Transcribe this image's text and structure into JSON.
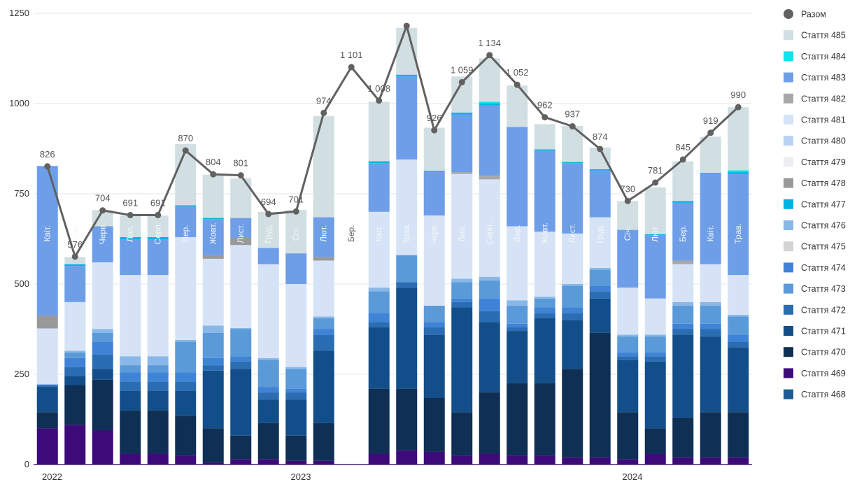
{
  "chart_data": {
    "type": "bar",
    "stacked": true,
    "ylim": [
      0,
      1250
    ],
    "yticks": [
      0,
      250,
      500,
      750,
      1000,
      1250
    ],
    "grid": true,
    "legend_position": "right",
    "year_labels": [
      {
        "label": "2022",
        "at_index": 0
      },
      {
        "label": "2023",
        "at_index": 9
      },
      {
        "label": "2024",
        "at_index": 21
      }
    ],
    "categories": [
      "Квіт.",
      "Трав.",
      "Черв.",
      "Лип.",
      "Серп.",
      "Вер.",
      "Жовт.",
      "Лист.",
      "Груд.",
      "Січ.",
      "Лют.",
      "Бер.",
      "Квіт.",
      "Трав.",
      "Черв.",
      "Лип.",
      "Серп.",
      "Вер.",
      "Жовт.",
      "Лист.",
      "Груд.",
      "Січ.",
      "Лют.",
      "Бер.",
      "Квіт.",
      "Трав."
    ],
    "line": {
      "name": "Разом",
      "color": "#616161",
      "values": [
        826,
        576,
        704,
        691,
        691,
        870,
        804,
        801,
        694,
        701,
        974,
        1101,
        1008,
        1215,
        926,
        1059,
        1134,
        1052,
        962,
        937,
        874,
        730,
        781,
        845,
        919,
        990
      ],
      "labels": [
        "826",
        "576",
        "704",
        "691",
        "691",
        "870",
        "804",
        "801",
        "694",
        "701",
        "974",
        "1 101",
        "1 008",
        "",
        "926",
        "1 059",
        "1 134",
        "1 052",
        "962",
        "937",
        "874",
        "730",
        "781",
        "845",
        "919",
        "990"
      ]
    },
    "series": [
      {
        "name": "Стаття 469",
        "color": "#3d0a7a",
        "values": [
          100,
          110,
          95,
          30,
          30,
          25,
          5,
          15,
          15,
          10,
          10,
          0,
          30,
          40,
          35,
          25,
          30,
          25,
          25,
          20,
          20,
          15,
          30,
          20,
          20,
          20
        ]
      },
      {
        "name": "Стаття 470",
        "color": "#0f2f55",
        "values": [
          45,
          110,
          140,
          120,
          120,
          110,
          95,
          65,
          100,
          70,
          105,
          0,
          180,
          170,
          150,
          120,
          170,
          200,
          200,
          245,
          345,
          130,
          70,
          110,
          125,
          125
        ]
      },
      {
        "name": "Стаття 471",
        "color": "#124e8a",
        "values": [
          70,
          25,
          30,
          55,
          55,
          70,
          160,
          185,
          65,
          100,
          200,
          0,
          170,
          280,
          175,
          290,
          195,
          145,
          180,
          135,
          95,
          145,
          185,
          230,
          210,
          180
        ]
      },
      {
        "name": "Стаття 468",
        "color": "#1c5c96",
        "values": [
          0,
          0,
          0,
          0,
          0,
          0,
          0,
          0,
          0,
          0,
          0,
          0,
          0,
          0,
          0,
          0,
          0,
          0,
          0,
          0,
          0,
          0,
          0,
          0,
          0,
          0
        ]
      },
      {
        "name": "Стаття 472",
        "color": "#2a6db3",
        "values": [
          5,
          25,
          40,
          25,
          25,
          25,
          15,
          20,
          20,
          20,
          45,
          0,
          15,
          15,
          20,
          15,
          30,
          10,
          15,
          20,
          20,
          10,
          15,
          15,
          20,
          15
        ]
      },
      {
        "name": "Стаття 474",
        "color": "#3f83d6",
        "values": [
          0,
          25,
          35,
          25,
          25,
          25,
          20,
          15,
          15,
          10,
          15,
          0,
          25,
          0,
          15,
          10,
          35,
          10,
          15,
          15,
          15,
          10,
          10,
          15,
          15,
          20
        ]
      },
      {
        "name": "Стаття 473",
        "color": "#5a9ad9",
        "values": [
          2,
          15,
          25,
          20,
          20,
          85,
          70,
          75,
          75,
          55,
          30,
          0,
          60,
          75,
          45,
          45,
          50,
          50,
          25,
          60,
          45,
          45,
          45,
          50,
          50,
          50
        ]
      },
      {
        "name": "Стаття 476",
        "color": "#89b8e8",
        "values": [
          0,
          5,
          10,
          25,
          25,
          5,
          20,
          3,
          5,
          5,
          5,
          0,
          10,
          0,
          0,
          10,
          10,
          15,
          5,
          5,
          5,
          5,
          5,
          10,
          10,
          5
        ]
      },
      {
        "name": "Стаття 480",
        "color": "#b9d2f1",
        "values": [
          0,
          0,
          0,
          0,
          0,
          0,
          0,
          0,
          0,
          0,
          0,
          0,
          0,
          0,
          0,
          0,
          0,
          0,
          0,
          0,
          0,
          0,
          0,
          0,
          0,
          0
        ]
      },
      {
        "name": "Стаття 475",
        "color": "#d4d4d4",
        "values": [
          0,
          0,
          0,
          0,
          0,
          0,
          0,
          0,
          0,
          0,
          0,
          0,
          0,
          0,
          0,
          0,
          0,
          0,
          0,
          0,
          0,
          0,
          0,
          0,
          0,
          0
        ]
      },
      {
        "name": "Стаття 479",
        "color": "#eceef0",
        "values": [
          0,
          0,
          0,
          0,
          0,
          0,
          0,
          0,
          0,
          0,
          0,
          0,
          0,
          0,
          0,
          0,
          0,
          0,
          0,
          0,
          0,
          0,
          0,
          0,
          0,
          0
        ]
      },
      {
        "name": "Стаття 481",
        "color": "#d6e3f6",
        "values": [
          155,
          135,
          185,
          225,
          225,
          285,
          185,
          230,
          260,
          230,
          155,
          0,
          210,
          265,
          250,
          290,
          270,
          205,
          180,
          140,
          140,
          130,
          100,
          105,
          105,
          110
        ]
      },
      {
        "name": "Стаття 478",
        "color": "#999999",
        "values": [
          35,
          0,
          0,
          0,
          0,
          0,
          10,
          20,
          0,
          0,
          10,
          0,
          0,
          0,
          0,
          0,
          0,
          0,
          0,
          0,
          0,
          0,
          0,
          0,
          0,
          0
        ]
      },
      {
        "name": "Стаття 482",
        "color": "#a8a8a8",
        "values": [
          0,
          0,
          0,
          0,
          0,
          0,
          0,
          0,
          0,
          0,
          0,
          0,
          0,
          0,
          0,
          5,
          10,
          0,
          0,
          0,
          0,
          0,
          0,
          10,
          0,
          0
        ]
      },
      {
        "name": "Стаття 483",
        "color": "#6e9ee8",
        "values": [
          415,
          100,
          100,
          100,
          100,
          85,
          100,
          55,
          45,
          85,
          110,
          0,
          135,
          230,
          120,
          160,
          195,
          275,
          225,
          195,
          130,
          160,
          175,
          160,
          250,
          280
        ]
      },
      {
        "name": "Стаття 477",
        "color": "#00b4e0",
        "values": [
          0,
          5,
          0,
          5,
          5,
          3,
          3,
          0,
          0,
          0,
          0,
          0,
          5,
          5,
          3,
          5,
          5,
          0,
          3,
          3,
          3,
          0,
          3,
          5,
          3,
          5
        ]
      },
      {
        "name": "Стаття 484",
        "color": "#14e0ee",
        "values": [
          0,
          0,
          0,
          0,
          0,
          0,
          0,
          0,
          0,
          0,
          0,
          0,
          0,
          0,
          0,
          0,
          5,
          0,
          0,
          0,
          0,
          0,
          0,
          0,
          0,
          5
        ]
      },
      {
        "name": "Стаття 485",
        "color": "#d1dfe3",
        "values": [
          0,
          20,
          45,
          60,
          60,
          170,
          120,
          110,
          100,
          120,
          280,
          0,
          165,
          130,
          120,
          100,
          120,
          115,
          70,
          100,
          60,
          80,
          130,
          110,
          100,
          175
        ]
      }
    ],
    "legend": [
      "Разом",
      "Стаття 485",
      "Стаття 484",
      "Стаття 483",
      "Стаття 482",
      "Стаття 481",
      "Стаття 480",
      "Стаття 479",
      "Стаття 478",
      "Стаття 477",
      "Стаття 476",
      "Стаття 475",
      "Стаття 474",
      "Стаття 473",
      "Стаття 472",
      "Стаття 471",
      "Стаття 470",
      "Стаття 469",
      "Стаття 468"
    ]
  }
}
